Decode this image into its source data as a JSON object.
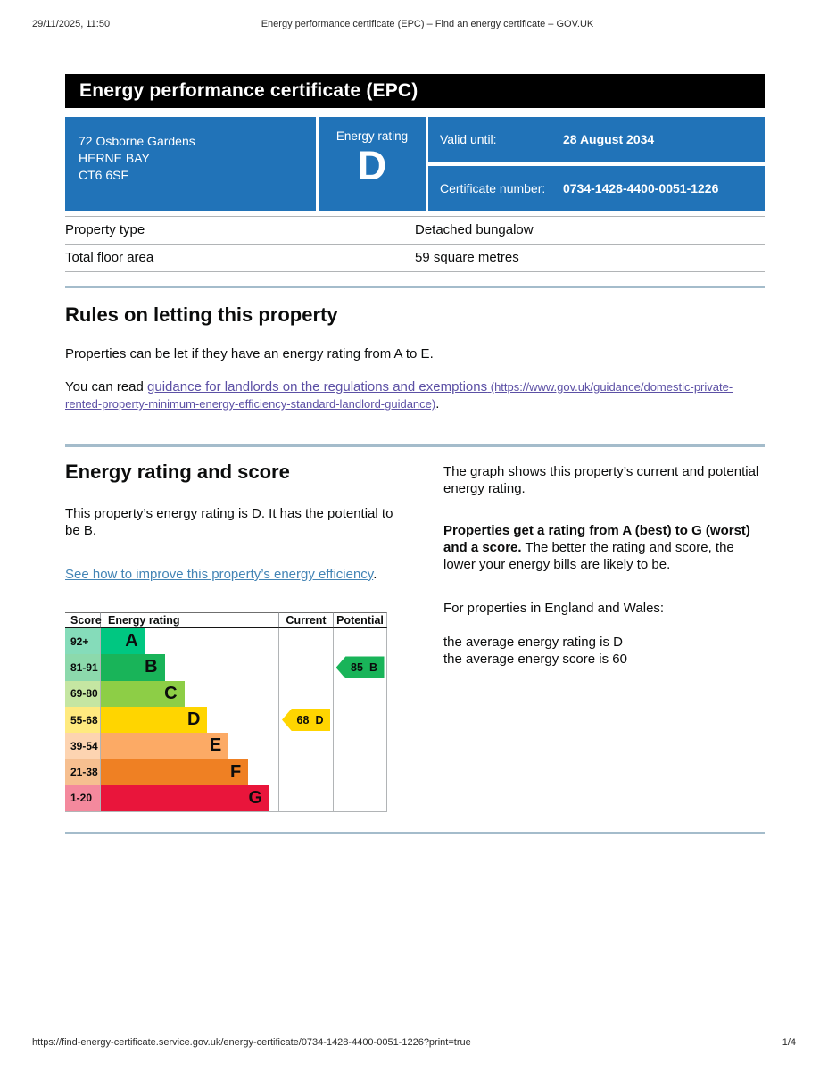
{
  "page_header": {
    "datetime": "29/11/2025, 11:50",
    "doc_title": "Energy performance certificate (EPC) – Find an energy certificate – GOV.UK"
  },
  "banner": {
    "title": "Energy performance certificate (EPC)"
  },
  "summary": {
    "address_lines": [
      "72 Osborne Gardens",
      "HERNE BAY",
      "CT6 6SF"
    ],
    "energy_rating_label": "Energy rating",
    "energy_rating": "D",
    "valid_until_label": "Valid until:",
    "valid_until": "28 August 2034",
    "certificate_number_label": "Certificate number:",
    "certificate_number": "0734-1428-4400-0051-1226"
  },
  "property_table": {
    "rows": [
      {
        "label": "Property type",
        "value": "Detached bungalow"
      },
      {
        "label": "Total floor area",
        "value": "59 square metres"
      }
    ]
  },
  "letting_section": {
    "heading": "Rules on letting this property",
    "paragraph1": "Properties can be let if they have an energy rating from A to E.",
    "paragraph2_prefix": "You can read ",
    "link_text": "guidance for landlords on the regulations and exemptions",
    "link_url_text": " (https://www.gov.uk/guidance/domestic-private-rented-property-minimum-energy-efficiency-standard-landlord-guidance)",
    "paragraph2_suffix": "."
  },
  "rating_section": {
    "heading": "Energy rating and score",
    "paragraph1": "This property’s energy rating is D. It has the potential to be B.",
    "improve_link": "See how to improve this property’s energy efficiency",
    "improve_link_suffix": ".",
    "right_paragraph1": "The graph shows this property’s current and potential energy rating.",
    "right_paragraph2_bold": "Properties get a rating from A (best) to G (worst) and a score.",
    "right_paragraph2_rest": " The better the rating and score, the lower your energy bills are likely to be.",
    "right_paragraph3": "For properties in England and Wales:",
    "right_line1": "the average energy rating is D",
    "right_line2": "the average energy score is 60"
  },
  "chart_data": {
    "type": "epc-rating-bands",
    "title": "Energy rating and score chart",
    "headers": {
      "score": "Score",
      "rating": "Energy rating",
      "current": "Current",
      "potential": "Potential"
    },
    "bands": [
      {
        "score": "92+",
        "letter": "A",
        "color": "#00c781",
        "tint": "#85dcba",
        "width_pct": 25
      },
      {
        "score": "81-91",
        "letter": "B",
        "color": "#19b459",
        "tint": "#8cd9ac",
        "width_pct": 36
      },
      {
        "score": "69-80",
        "letter": "C",
        "color": "#8dce46",
        "tint": "#c5e6a2",
        "width_pct": 47
      },
      {
        "score": "55-68",
        "letter": "D",
        "color": "#ffd500",
        "tint": "#ffea7f",
        "width_pct": 60
      },
      {
        "score": "39-54",
        "letter": "E",
        "color": "#fcaa65",
        "tint": "#fdd4b1",
        "width_pct": 72
      },
      {
        "score": "21-38",
        "letter": "F",
        "color": "#ef8023",
        "tint": "#f6bf90",
        "width_pct": 83
      },
      {
        "score": "1-20",
        "letter": "G",
        "color": "#e9153b",
        "tint": "#f4899d",
        "width_pct": 95
      }
    ],
    "current": {
      "score": 68,
      "letter": "D",
      "color": "#ffd500",
      "band": "D"
    },
    "potential": {
      "score": 85,
      "letter": "B",
      "color": "#19b459",
      "band": "B"
    }
  },
  "colors": {
    "govuk_blue": "#2173b8",
    "banner_black": "#000000",
    "link_blue": "#4384b5",
    "visited_purple": "#5c50a5",
    "section_break": "#a4bccb",
    "border_gray": "#b1b4b6"
  },
  "page_footer": {
    "url": "https://find-energy-certificate.service.gov.uk/energy-certificate/0734-1428-4400-0051-1226?print=true",
    "page": "1/4"
  }
}
